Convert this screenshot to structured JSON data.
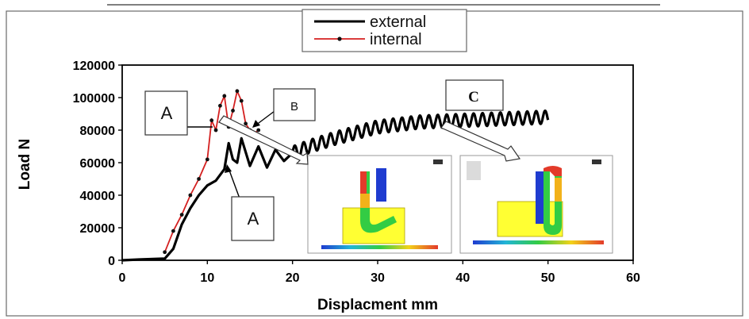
{
  "chart_data": {
    "type": "line",
    "title": "",
    "xlabel": "Displacment mm",
    "ylabel": "Load N",
    "xlim": [
      0,
      60
    ],
    "ylim": [
      0,
      120000
    ],
    "x_ticks": [
      "0",
      "10",
      "20",
      "30",
      "40",
      "50",
      "60"
    ],
    "y_ticks": [
      "0",
      "20000",
      "40000",
      "60000",
      "80000",
      "100000",
      "120000"
    ],
    "grid": false,
    "legend_position": "top-center",
    "series": [
      {
        "name": "external",
        "color": "#000000",
        "x": [
          0,
          2,
          5,
          6,
          7,
          8,
          9,
          10,
          11,
          12,
          12.5,
          13,
          13.5,
          14,
          15,
          16,
          17,
          18,
          19,
          20,
          22,
          25,
          30,
          35,
          40,
          45,
          50
        ],
        "y": [
          0,
          500,
          1000,
          7000,
          22000,
          32000,
          40000,
          46000,
          49000,
          56000,
          72000,
          62000,
          60000,
          75000,
          58000,
          70000,
          57000,
          68000,
          61000,
          66000,
          70000,
          75000,
          82000,
          85000,
          86000,
          87000,
          88000
        ],
        "oscillation": {
          "x_start": 20,
          "x_end": 50,
          "amplitude_n": 4000,
          "period_mm": 1.05
        }
      },
      {
        "name": "internal",
        "color": "#d42020",
        "x": [
          5,
          6,
          7,
          8,
          9,
          10,
          10.5,
          11,
          11.5,
          12,
          12.5,
          13,
          13.5,
          14,
          14.5,
          15,
          15.5,
          16
        ],
        "y": [
          5000,
          18000,
          28000,
          40000,
          50000,
          62000,
          86000,
          80000,
          95000,
          101000,
          82000,
          92000,
          104000,
          98000,
          84000,
          80000,
          78000,
          80000
        ]
      }
    ],
    "annotations": [
      {
        "label": "A"
      },
      {
        "label": "A"
      },
      {
        "label": "B"
      },
      {
        "label": "C"
      }
    ]
  }
}
